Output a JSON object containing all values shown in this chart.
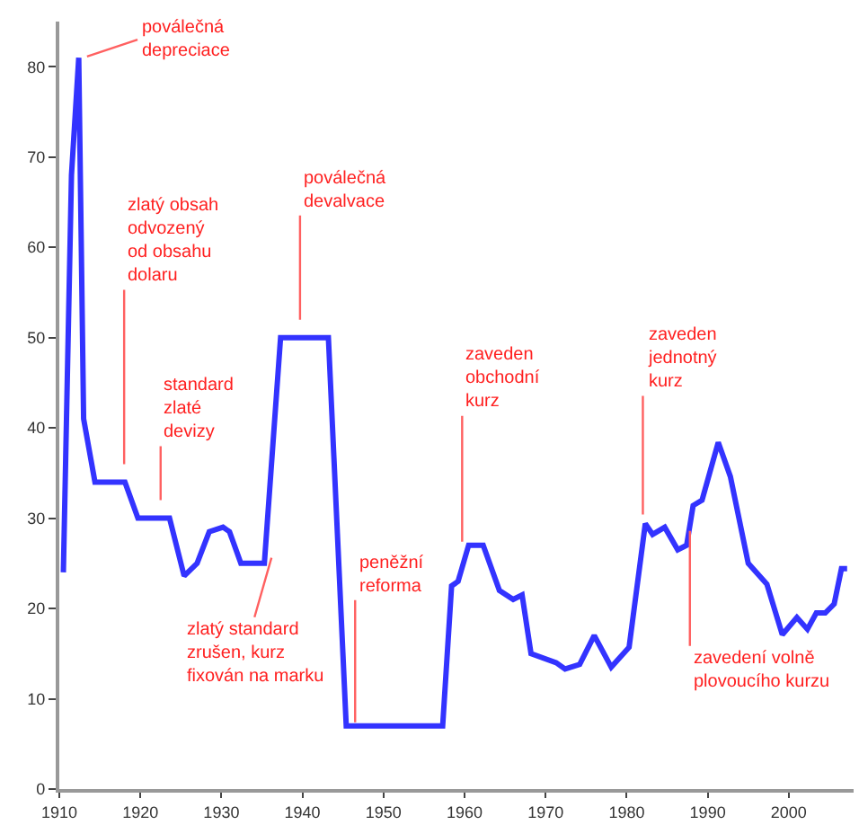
{
  "chart_data": {
    "type": "line",
    "x": [
      1910.5,
      1911.5,
      1912.4,
      1913,
      1914.4,
      1918.1,
      1919.7,
      1923.6,
      1925.4,
      1927,
      1928.5,
      1930.2,
      1931,
      1932.4,
      1935.3,
      1937.3,
      1943.2,
      1945.4,
      1957.3,
      1958.4,
      1959.2,
      1960.5,
      1962.3,
      1964.3,
      1966,
      1967.1,
      1968.2,
      1971.3,
      1972.4,
      1974.2,
      1976,
      1978.1,
      1980.3,
      1982.3,
      1983.2,
      1984.7,
      1986.3,
      1987.4,
      1988.2,
      1989.3,
      1991.3,
      1992.8,
      1995,
      1997.3,
      1999.2,
      2001,
      2002.3,
      2003.4,
      2004.5,
      2005.6,
      2006.5,
      2007.2
    ],
    "series": [
      {
        "color": "#3333ff",
        "values": [
          24,
          68,
          81,
          41,
          34,
          34,
          30,
          30,
          23.6,
          25,
          28.5,
          29,
          28.5,
          25,
          25,
          50,
          50,
          7,
          7,
          22.5,
          23,
          27,
          27,
          22,
          21,
          21.5,
          15,
          14,
          13.3,
          13.8,
          17,
          13.5,
          15.7,
          29.4,
          28.2,
          29,
          26.5,
          27,
          31.4,
          32,
          38.4,
          34.6,
          25,
          22.7,
          17.1,
          19,
          17.7,
          19.5,
          19.5,
          20.5,
          24.4,
          24.4
        ]
      }
    ],
    "xlim": [
      1910,
      2008
    ],
    "xticks": [
      1910,
      1920,
      1930,
      1940,
      1950,
      1960,
      1970,
      1980,
      1990,
      2000
    ],
    "ylim": [
      0,
      85
    ],
    "yticks": [
      0,
      10,
      20,
      30,
      40,
      50,
      60,
      70,
      80
    ],
    "grid": false,
    "marker": "none",
    "line_style": "solid",
    "annotations": [
      {
        "text": "poválečná\ndepreciace",
        "x": 1913,
        "y": 81
      },
      {
        "text": "zlatý obsah\nodvozený\nod obsahu\ndolaru",
        "x": 1918,
        "y": 34
      },
      {
        "text": "standard\nzlaté\ndevizy",
        "x": 1922.5,
        "y": 30
      },
      {
        "text": "poválečná\ndevalvace",
        "x": 1939.7,
        "y": 50
      },
      {
        "text": "zlatý standard\nzrušen, kurz\nfixován na marku",
        "x": 1936.3,
        "y": 26
      },
      {
        "text": "peněžní\nreforma",
        "x": 1946.5,
        "y": 7
      },
      {
        "text": "zaveden\nobchodní\nkurz",
        "x": 1959.7,
        "y": 27
      },
      {
        "text": "zaveden\njednotný\nkurz",
        "x": 1982,
        "y": 30
      },
      {
        "text": "zavedení volně\nplovoucího kurzu",
        "x": 1987.8,
        "y": 29
      }
    ]
  }
}
